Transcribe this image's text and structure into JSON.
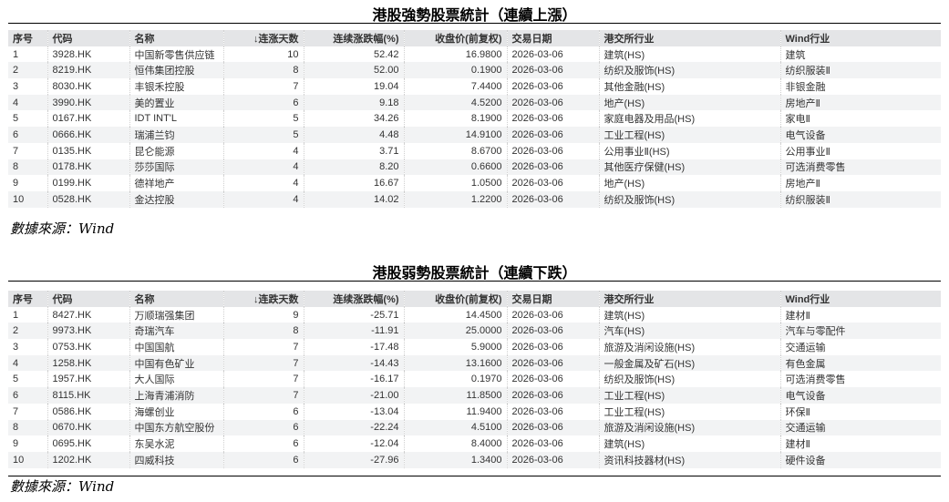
{
  "columns_common": [
    "序号",
    "代码",
    "名称",
    "",
    "连续涨跌幅(%)",
    "收盘价(前复权)",
    "交易日期",
    "港交所行业",
    "Wind行业"
  ],
  "strong": {
    "title": "港股強勢股票統計（連續上漲）",
    "sort_col": "↓连涨天数",
    "source": "數據來源：Wind",
    "rows": [
      [
        "1",
        "3928.HK",
        "中国新零售供应链",
        "10",
        "52.42",
        "16.9800",
        "2026-03-06",
        "建筑(HS)",
        "建筑"
      ],
      [
        "2",
        "8219.HK",
        "恒伟集团控股",
        "8",
        "52.00",
        "0.1900",
        "2026-03-06",
        "纺织及服饰(HS)",
        "纺织服装Ⅱ"
      ],
      [
        "3",
        "8030.HK",
        "丰银禾控股",
        "7",
        "19.04",
        "7.4400",
        "2026-03-06",
        "其他金融(HS)",
        "非银金融"
      ],
      [
        "4",
        "3990.HK",
        "美的置业",
        "6",
        "9.18",
        "4.5200",
        "2026-03-06",
        "地产(HS)",
        "房地产Ⅱ"
      ],
      [
        "5",
        "0167.HK",
        "IDT INT'L",
        "5",
        "34.26",
        "8.1900",
        "2026-03-06",
        "家庭电器及用品(HS)",
        "家电Ⅱ"
      ],
      [
        "6",
        "0666.HK",
        "瑞浦兰钧",
        "5",
        "4.48",
        "14.9100",
        "2026-03-06",
        "工业工程(HS)",
        "电气设备"
      ],
      [
        "7",
        "0135.HK",
        "昆仑能源",
        "4",
        "3.71",
        "8.6700",
        "2026-03-06",
        "公用事业Ⅱ(HS)",
        "公用事业Ⅱ"
      ],
      [
        "8",
        "0178.HK",
        "莎莎国际",
        "4",
        "8.20",
        "0.6600",
        "2026-03-06",
        "其他医疗保健(HS)",
        "可选消费零售"
      ],
      [
        "9",
        "0199.HK",
        "德祥地产",
        "4",
        "16.67",
        "1.0500",
        "2026-03-06",
        "地产(HS)",
        "房地产Ⅱ"
      ],
      [
        "10",
        "0528.HK",
        "金达控股",
        "4",
        "14.02",
        "1.2200",
        "2026-03-06",
        "纺织及服饰(HS)",
        "纺织服装Ⅱ"
      ]
    ]
  },
  "weak": {
    "title": "港股弱勢股票統計（連續下跌）",
    "sort_col": "↓连跌天数",
    "source": "數據來源：Wind",
    "rows": [
      [
        "1",
        "8427.HK",
        "万顺瑞强集团",
        "9",
        "-25.71",
        "14.4500",
        "2026-03-06",
        "建筑(HS)",
        "建材Ⅱ"
      ],
      [
        "2",
        "9973.HK",
        "奇瑞汽车",
        "8",
        "-11.91",
        "25.0000",
        "2026-03-06",
        "汽车(HS)",
        "汽车与零配件"
      ],
      [
        "3",
        "0753.HK",
        "中国国航",
        "7",
        "-17.48",
        "5.9000",
        "2026-03-06",
        "旅游及消闲设施(HS)",
        "交通运输"
      ],
      [
        "4",
        "1258.HK",
        "中国有色矿业",
        "7",
        "-14.43",
        "13.1600",
        "2026-03-06",
        "一般金属及矿石(HS)",
        "有色金属"
      ],
      [
        "5",
        "1957.HK",
        "大人国际",
        "7",
        "-16.17",
        "0.1970",
        "2026-03-06",
        "纺织及服饰(HS)",
        "可选消费零售"
      ],
      [
        "6",
        "8115.HK",
        "上海青浦消防",
        "7",
        "-21.00",
        "11.8500",
        "2026-03-06",
        "工业工程(HS)",
        "电气设备"
      ],
      [
        "7",
        "0586.HK",
        "海螺创业",
        "6",
        "-13.04",
        "11.9400",
        "2026-03-06",
        "工业工程(HS)",
        "环保Ⅱ"
      ],
      [
        "8",
        "0670.HK",
        "中国东方航空股份",
        "6",
        "-22.24",
        "4.5100",
        "2026-03-06",
        "旅游及消闲设施(HS)",
        "交通运输"
      ],
      [
        "9",
        "0695.HK",
        "东吴水泥",
        "6",
        "-12.04",
        "8.4000",
        "2026-03-06",
        "建筑(HS)",
        "建材Ⅱ"
      ],
      [
        "10",
        "1202.HK",
        "四威科技",
        "6",
        "-27.96",
        "1.3400",
        "2026-03-06",
        "资讯科技器材(HS)",
        "硬件设备"
      ]
    ]
  }
}
